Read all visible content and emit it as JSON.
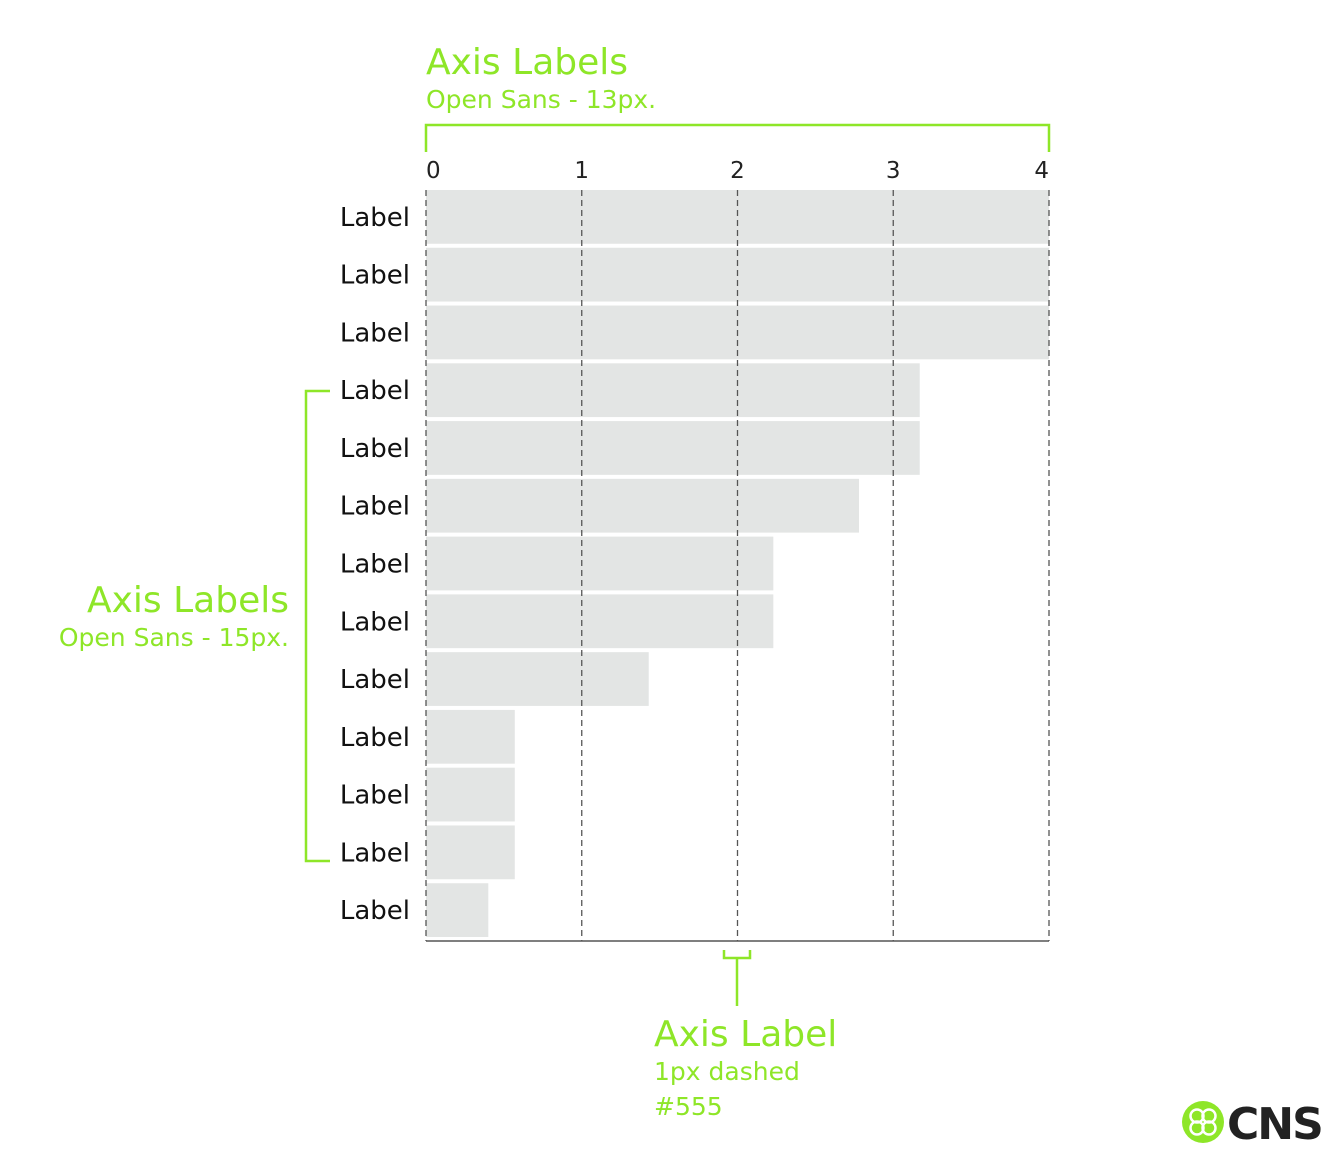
{
  "chart_data": {
    "type": "bar",
    "orientation": "horizontal",
    "categories": [
      "Label",
      "Label",
      "Label",
      "Label",
      "Label",
      "Label",
      "Label",
      "Label",
      "Label",
      "Label",
      "Label",
      "Label",
      "Label"
    ],
    "values": [
      4.0,
      4.0,
      4.0,
      3.17,
      3.17,
      2.78,
      2.23,
      2.23,
      1.43,
      0.57,
      0.57,
      0.57,
      0.4
    ],
    "xticks": [
      0,
      1,
      2,
      3,
      4
    ],
    "xlim": [
      0,
      4
    ],
    "bar_color": "#e3e5e4",
    "grid_color": "#555555",
    "grid": "dashed vertical"
  },
  "annotations": {
    "top": {
      "title": "Axis Labels",
      "subtitle": "Open Sans - 13px."
    },
    "left": {
      "title": "Axis Labels",
      "subtitle": "Open Sans - 15px."
    },
    "bottom": {
      "title": "Axis Label",
      "line1": "1px dashed",
      "line2": "#555"
    },
    "color": "#8ee628"
  },
  "logo": {
    "text": "CNS",
    "icon": "cns-clover-icon"
  }
}
